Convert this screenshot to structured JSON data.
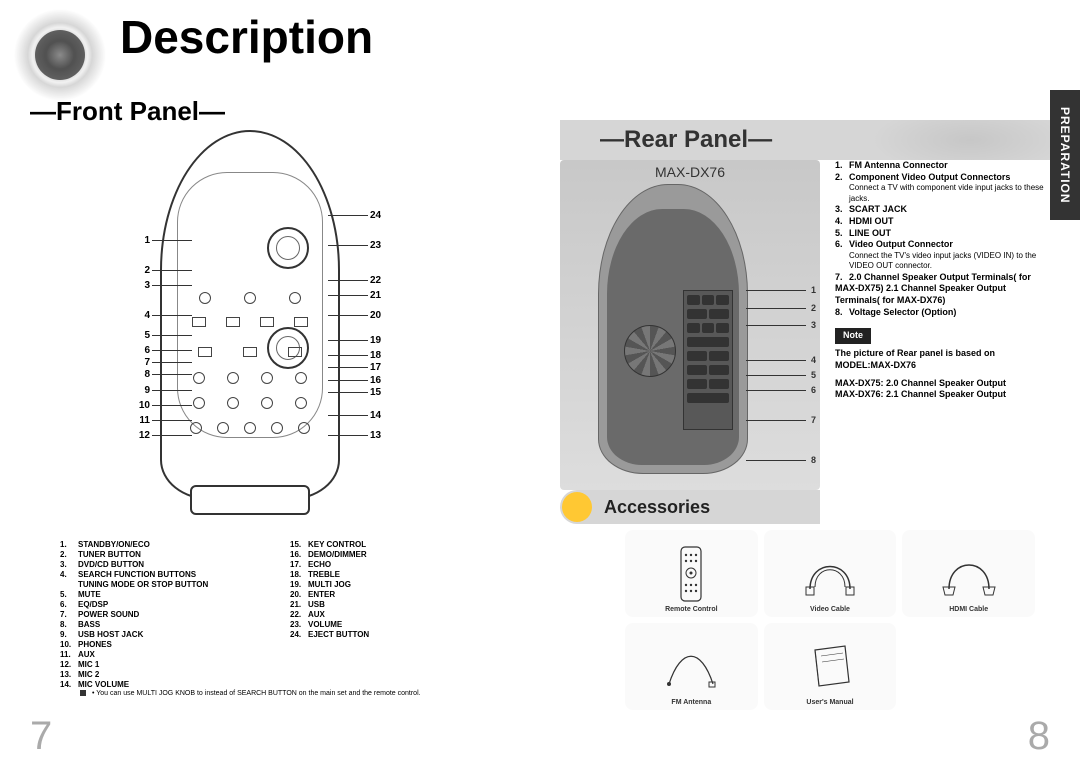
{
  "page": {
    "title": "Description",
    "section_tab": "PREPARATION",
    "page_left": "7",
    "page_right": "8"
  },
  "front": {
    "title": "—Front Panel—",
    "callouts_left": [
      "1",
      "2",
      "3",
      "4",
      "5",
      "6",
      "7",
      "8",
      "9",
      "10",
      "11",
      "12"
    ],
    "callouts_right": [
      "24",
      "23",
      "22",
      "21",
      "20",
      "19",
      "18",
      "17",
      "16",
      "15",
      "14",
      "13"
    ],
    "legend_col1": [
      {
        "n": "1.",
        "t": "STANDBY/ON/ECO"
      },
      {
        "n": "2.",
        "t": "TUNER BUTTON"
      },
      {
        "n": "3.",
        "t": "DVD/CD BUTTON"
      },
      {
        "n": "4.",
        "t": "SEARCH FUNCTION BUTTONS"
      },
      {
        "n": "",
        "t": "TUNING MODE OR STOP BUTTON"
      },
      {
        "n": "5.",
        "t": "MUTE"
      },
      {
        "n": "6.",
        "t": "EQ/DSP"
      },
      {
        "n": "7.",
        "t": "POWER SOUND"
      },
      {
        "n": "8.",
        "t": "BASS"
      },
      {
        "n": "9.",
        "t": "USB HOST JACK"
      },
      {
        "n": "10.",
        "t": "PHONES"
      },
      {
        "n": "11.",
        "t": "AUX"
      },
      {
        "n": "12.",
        "t": "MIC 1"
      },
      {
        "n": "13.",
        "t": "MIC 2"
      },
      {
        "n": "14.",
        "t": "MIC VOLUME"
      }
    ],
    "legend_col2": [
      {
        "n": "15.",
        "t": "KEY CONTROL"
      },
      {
        "n": "16.",
        "t": "DEMO/DIMMER"
      },
      {
        "n": "17.",
        "t": "ECHO"
      },
      {
        "n": "18.",
        "t": "TREBLE"
      },
      {
        "n": "19.",
        "t": "MULTI JOG"
      },
      {
        "n": "20.",
        "t": "ENTER"
      },
      {
        "n": "21.",
        "t": "USB"
      },
      {
        "n": "22.",
        "t": "AUX"
      },
      {
        "n": "23.",
        "t": "VOLUME"
      },
      {
        "n": "24.",
        "t": "EJECT BUTTON"
      }
    ],
    "footnote": "• You can use MULTI JOG KNOB to instead of SEARCH BUTTON on the main set and the remote control."
  },
  "rear": {
    "title": "—Rear Panel—",
    "model": "MAX-DX76",
    "callouts": [
      "1",
      "2",
      "3",
      "4",
      "5",
      "6",
      "7",
      "8"
    ],
    "legend": [
      {
        "n": "1.",
        "t": "FM Antenna Connector",
        "bold": true
      },
      {
        "n": "2.",
        "t": "Component Video Output Connectors",
        "bold": true
      },
      {
        "n": "",
        "t": "Connect a TV with component vide input jacks to these jacks.",
        "bold": false
      },
      {
        "n": "3.",
        "t": "SCART JACK",
        "bold": true
      },
      {
        "n": "4.",
        "t": "HDMI OUT",
        "bold": true
      },
      {
        "n": "5.",
        "t": "LINE OUT",
        "bold": true
      },
      {
        "n": "6.",
        "t": "Video Output Connector",
        "bold": true
      },
      {
        "n": "",
        "t": "Connect the TV's video input jacks (VIDEO IN) to the VIDEO OUT connector.",
        "bold": false
      },
      {
        "n": "7.",
        "t": "2.0 Channel Speaker Output Terminals( for MAX-DX75) 2.1 Channel Speaker Output Terminals( for MAX-DX76)",
        "bold": true
      },
      {
        "n": "8.",
        "t": "Voltage Selector (Option)",
        "bold": true
      }
    ],
    "note_label": "Note",
    "note_text1": "The picture of Rear panel is based on MODEL:MAX-DX76",
    "note_text2": "MAX-DX75: 2.0 Channel Speaker Output",
    "note_text3": "MAX-DX76: 2.1 Channel Speaker Output"
  },
  "accessories": {
    "title": "Accessories",
    "items": [
      {
        "label": "Remote Control"
      },
      {
        "label": "Video Cable"
      },
      {
        "label": "HDMI Cable"
      },
      {
        "label": "FM Antenna"
      },
      {
        "label": "User's Manual"
      }
    ]
  },
  "colors": {
    "accent": "#ffc833",
    "tab_bg": "#333333",
    "banner_bg": "#d6d6d6",
    "rear_bg": "#9a9a9a",
    "page_num": "#aaaaaa"
  }
}
